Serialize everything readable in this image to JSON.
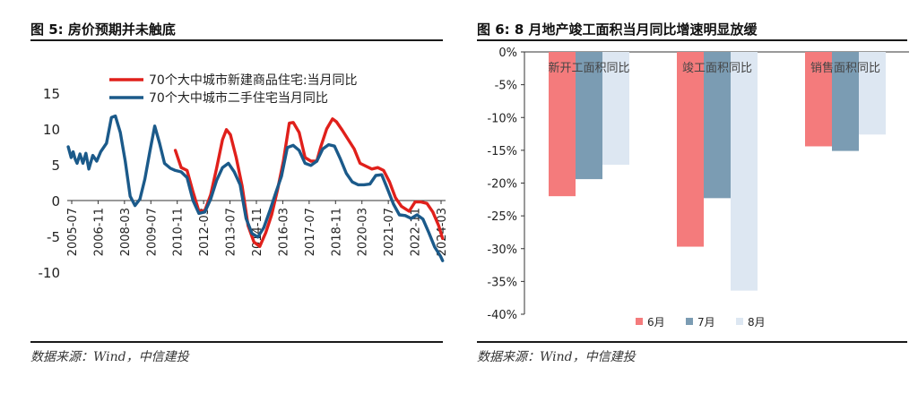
{
  "left_panel": {
    "title": "图 5:  房价预期并未触底",
    "source": "数据来源：Wind，中信建投"
  },
  "right_panel": {
    "title": "图 6: 8 月地产竣工面积当月同比增速明显放缓",
    "source": "数据来源：Wind，中信建投"
  },
  "chart_data": [
    {
      "type": "line",
      "title": "图 5:  房价预期并未触底",
      "xlabel": "",
      "ylabel": "",
      "ylim": [
        -10,
        15
      ],
      "yticks": [
        15,
        10,
        5,
        0,
        -5,
        -10
      ],
      "xlim": [
        2005.5,
        2024.75
      ],
      "xtick_labels": [
        "2005-07",
        "2006-11",
        "2008-03",
        "2009-07",
        "2010-11",
        "2012-03",
        "2013-07",
        "2014-11",
        "2016-03",
        "2017-07",
        "2018-11",
        "2020-03",
        "2021-07",
        "2022-11",
        "2024-03"
      ],
      "legend": "top-left",
      "grid": false,
      "series": [
        {
          "name": "70个大中城市新建商品住宅:当月同比",
          "color": "#e0201b",
          "points": [
            [
              2011.0,
              7
            ],
            [
              2011.3,
              4.6
            ],
            [
              2011.6,
              4.2
            ],
            [
              2011.9,
              1.2
            ],
            [
              2012.2,
              -1.5
            ],
            [
              2012.5,
              -1.4
            ],
            [
              2012.8,
              0.8
            ],
            [
              2013.1,
              4.5
            ],
            [
              2013.4,
              8.5
            ],
            [
              2013.6,
              9.9
            ],
            [
              2013.8,
              9.2
            ],
            [
              2014.1,
              6
            ],
            [
              2014.4,
              2
            ],
            [
              2014.7,
              -3.5
            ],
            [
              2015.0,
              -5.8
            ],
            [
              2015.3,
              -6.4
            ],
            [
              2015.6,
              -4.5
            ],
            [
              2015.9,
              -2
            ],
            [
              2016.2,
              1.5
            ],
            [
              2016.5,
              5.5
            ],
            [
              2016.8,
              10.8
            ],
            [
              2017.0,
              10.9
            ],
            [
              2017.3,
              9.5
            ],
            [
              2017.6,
              6
            ],
            [
              2017.9,
              5.5
            ],
            [
              2018.2,
              5.5
            ],
            [
              2018.4,
              7.5
            ],
            [
              2018.7,
              10
            ],
            [
              2019.0,
              11.4
            ],
            [
              2019.2,
              11
            ],
            [
              2019.5,
              9.8
            ],
            [
              2019.8,
              8.5
            ],
            [
              2020.1,
              7.2
            ],
            [
              2020.4,
              5.2
            ],
            [
              2020.7,
              4.8
            ],
            [
              2021.0,
              4.4
            ],
            [
              2021.3,
              4.6
            ],
            [
              2021.6,
              4.2
            ],
            [
              2021.9,
              2.6
            ],
            [
              2022.2,
              0.4
            ],
            [
              2022.5,
              -0.8
            ],
            [
              2022.9,
              -1.5
            ],
            [
              2023.2,
              -0.2
            ],
            [
              2023.5,
              -0.2
            ],
            [
              2023.8,
              -0.4
            ],
            [
              2024.1,
              -1.6
            ],
            [
              2024.4,
              -3.5
            ],
            [
              2024.6,
              -5.3
            ]
          ]
        },
        {
          "name": "70个大中城市二手住宅当月同比",
          "color": "#1b5a8a",
          "points": [
            [
              2005.55,
              7.5
            ],
            [
              2005.7,
              6
            ],
            [
              2005.8,
              6.8
            ],
            [
              2005.9,
              5.8
            ],
            [
              2006.0,
              5.2
            ],
            [
              2006.15,
              6.5
            ],
            [
              2006.3,
              5.2
            ],
            [
              2006.45,
              6.6
            ],
            [
              2006.6,
              4.4
            ],
            [
              2006.8,
              6.3
            ],
            [
              2007.0,
              5.5
            ],
            [
              2007.2,
              6.8
            ],
            [
              2007.5,
              8
            ],
            [
              2007.75,
              11.6
            ],
            [
              2007.95,
              11.8
            ],
            [
              2008.2,
              9.5
            ],
            [
              2008.45,
              5.5
            ],
            [
              2008.7,
              0.6
            ],
            [
              2008.95,
              -0.7
            ],
            [
              2009.2,
              0.2
            ],
            [
              2009.45,
              3
            ],
            [
              2009.7,
              6.8
            ],
            [
              2009.95,
              10.4
            ],
            [
              2010.2,
              8
            ],
            [
              2010.45,
              5.2
            ],
            [
              2010.75,
              4.5
            ],
            [
              2011.0,
              4.2
            ],
            [
              2011.3,
              4
            ],
            [
              2011.6,
              3.2
            ],
            [
              2011.9,
              0
            ],
            [
              2012.2,
              -1.8
            ],
            [
              2012.5,
              -1.6
            ],
            [
              2012.8,
              0.2
            ],
            [
              2013.1,
              2.8
            ],
            [
              2013.4,
              4.6
            ],
            [
              2013.7,
              5.2
            ],
            [
              2014.0,
              4
            ],
            [
              2014.3,
              2.2
            ],
            [
              2014.6,
              -2.5
            ],
            [
              2014.9,
              -4.6
            ],
            [
              2015.2,
              -5.1
            ],
            [
              2015.5,
              -3.8
            ],
            [
              2015.8,
              -1.5
            ],
            [
              2016.1,
              1
            ],
            [
              2016.4,
              3.4
            ],
            [
              2016.7,
              7.4
            ],
            [
              2017.0,
              7.7
            ],
            [
              2017.3,
              7
            ],
            [
              2017.6,
              5.2
            ],
            [
              2017.9,
              4.9
            ],
            [
              2018.2,
              5.5
            ],
            [
              2018.5,
              7.2
            ],
            [
              2018.8,
              7.8
            ],
            [
              2019.1,
              7.6
            ],
            [
              2019.4,
              5.8
            ],
            [
              2019.7,
              3.8
            ],
            [
              2020.0,
              2.6
            ],
            [
              2020.3,
              2.2
            ],
            [
              2020.6,
              2.2
            ],
            [
              2020.9,
              2.3
            ],
            [
              2021.2,
              3.5
            ],
            [
              2021.5,
              3.6
            ],
            [
              2021.8,
              1.6
            ],
            [
              2022.1,
              -0.5
            ],
            [
              2022.4,
              -2
            ],
            [
              2022.7,
              -2.1
            ],
            [
              2023.0,
              -2.5
            ],
            [
              2023.3,
              -2
            ],
            [
              2023.6,
              -2.6
            ],
            [
              2023.9,
              -4.5
            ],
            [
              2024.2,
              -6.5
            ],
            [
              2024.5,
              -7.8
            ],
            [
              2024.6,
              -8.4
            ]
          ]
        }
      ]
    },
    {
      "type": "bar",
      "title": "图 6: 8 月地产竣工面积当月同比增速明显放缓",
      "categories": [
        "新开工面积同比",
        "竣工面积同比",
        "销售面积同比"
      ],
      "series": [
        {
          "name": "6月",
          "color": "#f47b7c",
          "values": [
            -22,
            -29.7,
            -14.4
          ]
        },
        {
          "name": "7月",
          "color": "#7b9cb3",
          "values": [
            -19.4,
            -22.3,
            -15.1
          ]
        },
        {
          "name": "8月",
          "color": "#dde7f2",
          "values": [
            -17.2,
            -36.4,
            -12.6
          ]
        }
      ],
      "ylim": [
        -40,
        0
      ],
      "yticks": [
        "0%",
        "-5%",
        "-10%",
        "-15%",
        "-20%",
        "-25%",
        "-30%",
        "-35%",
        "-40%"
      ],
      "legend": "bottom",
      "grid": false
    }
  ]
}
